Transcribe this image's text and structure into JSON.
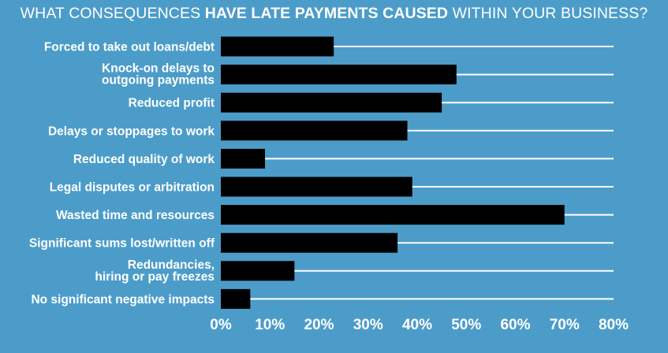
{
  "title": {
    "part1": "WHAT CONSEQUENCES ",
    "part2": "HAVE LATE PAYMENTS CAUSED",
    "part3": " WITHIN YOUR BUSINESS?"
  },
  "colors": {
    "background": "#4c9cc9",
    "bar": "#000000",
    "gridline": "#ffffff",
    "text": "#ffffff"
  },
  "chart_data": {
    "type": "bar",
    "orientation": "horizontal",
    "title": "WHAT CONSEQUENCES HAVE LATE PAYMENTS CAUSED WITHIN YOUR BUSINESS?",
    "xlabel": "",
    "ylabel": "",
    "xlim": [
      0,
      80
    ],
    "grid": true,
    "legend": "none",
    "categories": [
      [
        "Forced to take out loans/debt"
      ],
      [
        "Knock-on delays to",
        "outgoing payments"
      ],
      [
        "Reduced profit"
      ],
      [
        "Delays or stoppages to work"
      ],
      [
        "Reduced quality of work"
      ],
      [
        "Legal disputes or arbitration"
      ],
      [
        "Wasted time and resources"
      ],
      [
        "Significant sums lost/written off"
      ],
      [
        "Redundancies,",
        "hiring or pay freezes"
      ],
      [
        "No significant negative impacts"
      ]
    ],
    "values": [
      23,
      48,
      45,
      38,
      9,
      39,
      70,
      36,
      15,
      6
    ],
    "ticks": [
      0,
      10,
      20,
      30,
      40,
      50,
      60,
      70,
      80
    ],
    "tick_labels": [
      "0%",
      "10%",
      "20%",
      "30%",
      "40%",
      "50%",
      "60%",
      "70%",
      "80%"
    ]
  }
}
